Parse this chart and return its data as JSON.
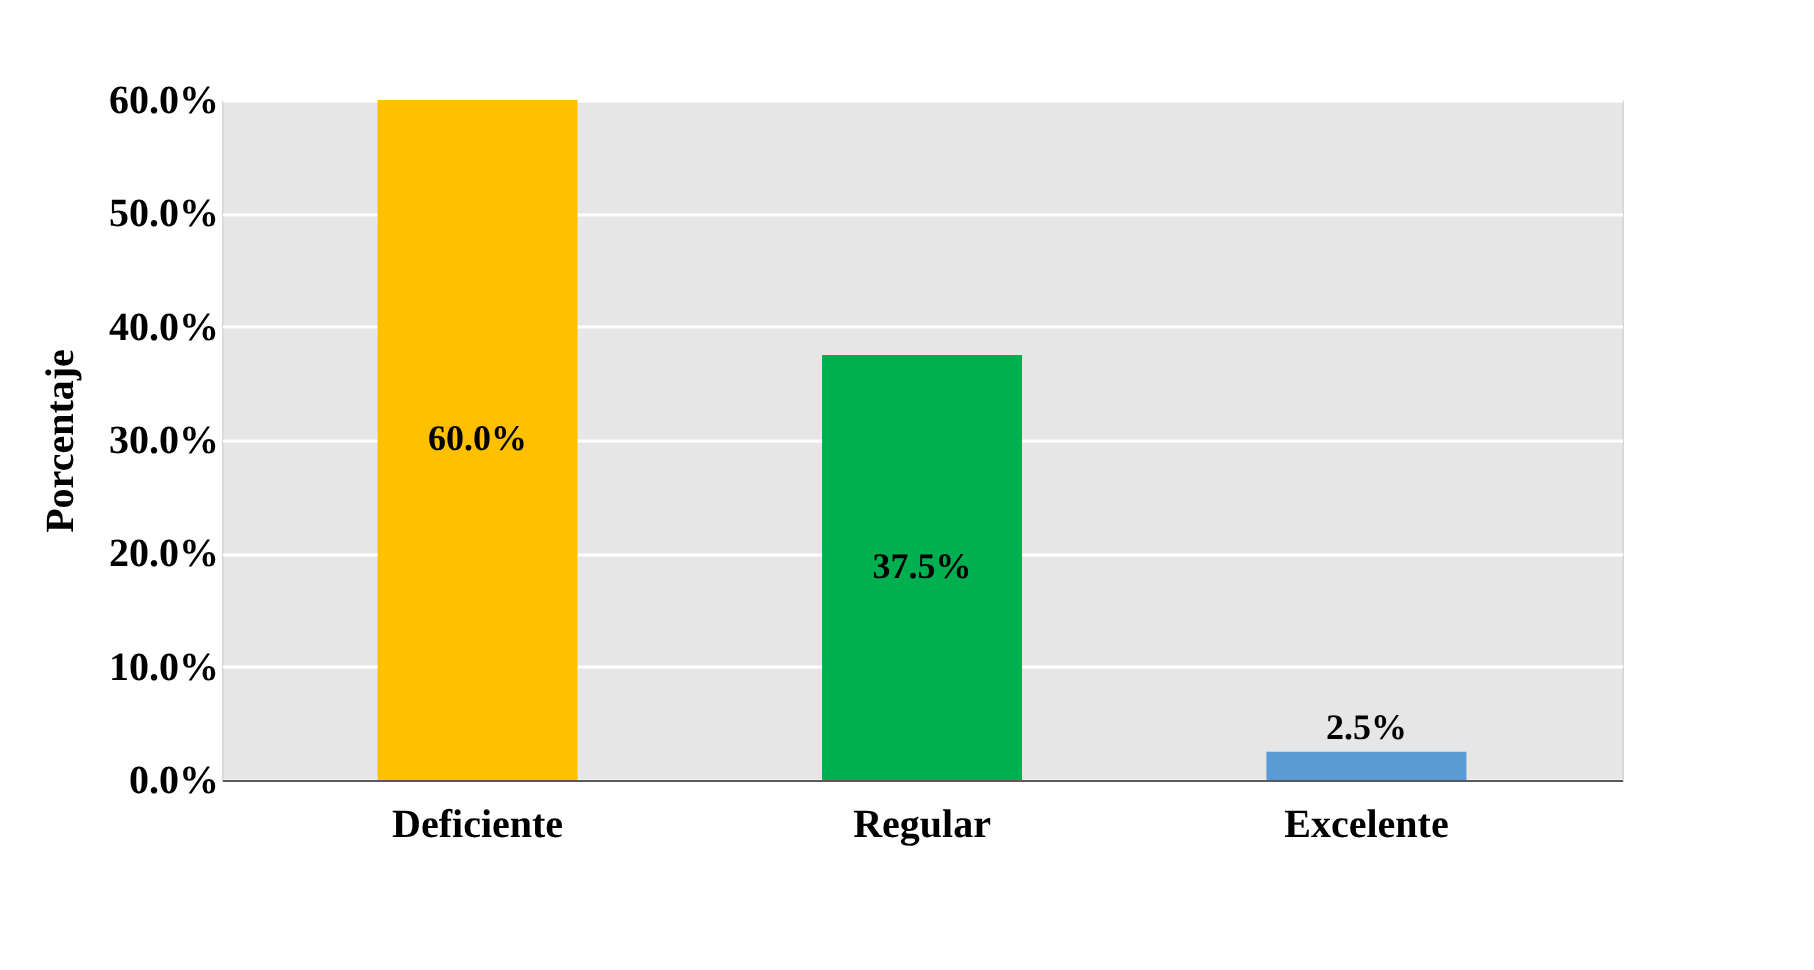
{
  "chart_data": {
    "type": "bar",
    "ylabel": "Porcentaje",
    "categories": [
      "Deficiente",
      "Regular",
      "Excelente"
    ],
    "values": [
      60.0,
      37.5,
      2.5
    ],
    "colors": [
      "#ffc000",
      "#00b050",
      "#5b9bd5"
    ],
    "value_labels": [
      "60.0%",
      "37.5%",
      "2.5%"
    ],
    "ylim": [
      0,
      60
    ],
    "yticks": [
      {
        "value": 0,
        "label": "0.0%"
      },
      {
        "value": 10,
        "label": "10.0%"
      },
      {
        "value": 20,
        "label": "20.0%"
      },
      {
        "value": 30,
        "label": "30.0%"
      },
      {
        "value": 40,
        "label": "40.0%"
      },
      {
        "value": 50,
        "label": "50.0%"
      },
      {
        "value": 60,
        "label": "60.0%"
      }
    ],
    "grid": "y"
  }
}
